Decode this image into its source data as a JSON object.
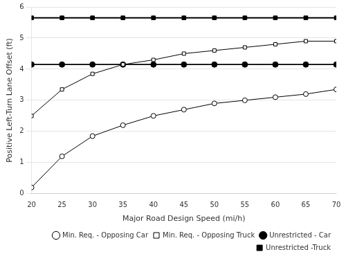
{
  "chart_data": {
    "type": "line",
    "x": [
      20,
      25,
      30,
      35,
      40,
      45,
      50,
      55,
      60,
      65,
      70
    ],
    "series": [
      {
        "name": "Min. Req. - Opposing Car",
        "color": "#000000",
        "marker": "circle_open",
        "values": [
          0.2,
          1.2,
          1.85,
          2.2,
          2.5,
          2.7,
          2.9,
          3.0,
          3.1,
          3.2,
          3.35
        ]
      },
      {
        "name": "Min. Req. - Opposing Truck",
        "color": "#000000",
        "marker": "square_open",
        "values": [
          2.5,
          3.35,
          3.85,
          4.15,
          4.3,
          4.5,
          4.6,
          4.7,
          4.8,
          4.9,
          4.9
        ]
      },
      {
        "name": "Unrestricted - Car",
        "color": "#000000",
        "marker": "circle",
        "values": [
          4.15,
          4.15,
          4.15,
          4.15,
          4.15,
          4.15,
          4.15,
          4.15,
          4.15,
          4.15,
          4.15
        ]
      },
      {
        "name": "Unrestricted -Truck",
        "color": "#000000",
        "marker": "square",
        "values": [
          5.65,
          5.65,
          5.65,
          5.65,
          5.65,
          5.65,
          5.65,
          5.65,
          5.65,
          5.65,
          5.65
        ]
      }
    ],
    "xlabel": "Major Road Design Speed (mi/h)",
    "ylabel": "Positive Left-Turn Lane Offset (ft)",
    "xlim": [
      20,
      70
    ],
    "xticks": [
      20,
      25,
      30,
      35,
      40,
      45,
      50,
      55,
      60,
      65,
      70
    ],
    "ylim": [
      0,
      6
    ],
    "yticks": [
      0,
      1,
      2,
      3,
      4,
      5,
      6
    ],
    "grid": "y",
    "legend": "lower right"
  }
}
